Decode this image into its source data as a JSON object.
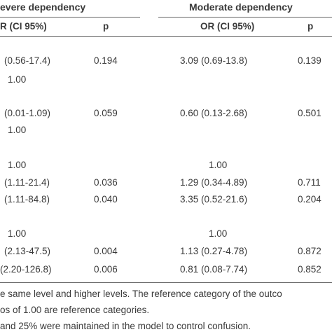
{
  "header": {
    "group_left": "evere dependency",
    "group_right": "Moderate dependency",
    "col_or_left": "R (CI 95%)",
    "col_p_left": "p",
    "col_or_right": "OR (CI 95%)",
    "col_p_right": "p"
  },
  "rows": [
    {
      "or_left": "(0.56-17.4)",
      "p_left": "0.194",
      "or_right": "3.09 (0.69-13.8)",
      "p_right": "0.139"
    },
    {
      "or_left": "1.00",
      "p_left": "",
      "or_right": "",
      "p_right": ""
    },
    {
      "or_left": "(0.01-1.09)",
      "p_left": "0.059",
      "or_right": "0.60 (0.13-2.68)",
      "p_right": "0.501"
    },
    {
      "or_left": "1.00",
      "p_left": "",
      "or_right": "",
      "p_right": ""
    },
    {
      "or_left": "1.00",
      "p_left": "",
      "or_right": "1.00",
      "p_right": ""
    },
    {
      "or_left": "(1.11-21.4)",
      "p_left": "0.036",
      "or_right": "1.29 (0.34-4.89)",
      "p_right": "0.711"
    },
    {
      "or_left": "(1.11-84.8)",
      "p_left": "0.040",
      "or_right": "3.35 (0.52-21.6)",
      "p_right": "0.204"
    },
    {
      "or_left": "1.00",
      "p_left": "",
      "or_right": "1.00",
      "p_right": ""
    },
    {
      "or_left": "(2.13-47.5)",
      "p_left": "0.004",
      "or_right": "1.13 (0.27-4.78)",
      "p_right": "0.872"
    },
    {
      "or_left": "(2.20-126.8)",
      "p_left": "0.006",
      "or_right": "0.81 (0.08-7.74)",
      "p_right": "0.852"
    }
  ],
  "footnotes": {
    "line1": "e same level and higher levels. The reference category of the outco",
    "line2": "os of 1.00 are reference categories.",
    "line3": "and 25% were maintained in the model to control confusion."
  }
}
